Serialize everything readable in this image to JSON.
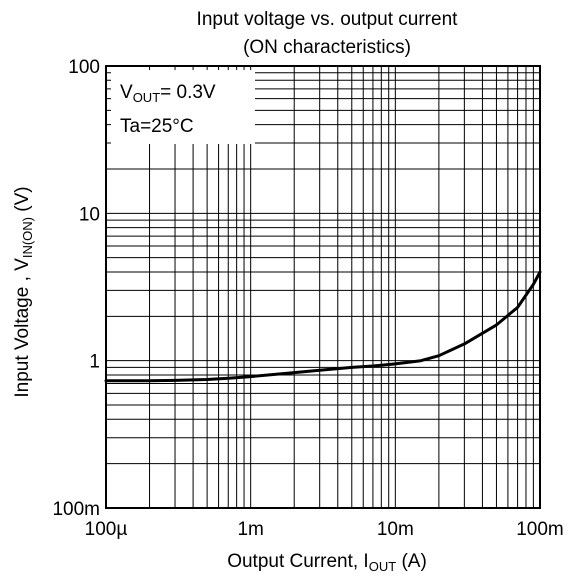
{
  "chart_data": {
    "type": "line",
    "title": "Input voltage vs. output current",
    "subtitle": "(ON characteristics)",
    "xlabel": {
      "main": "Output Current, I",
      "sub": "OUT",
      "unit": " (A)"
    },
    "ylabel": {
      "main": "Input Voltage , V",
      "sub": "IN(ON)",
      "unit": " (V)"
    },
    "x_scale": "log",
    "y_scale": "log",
    "xlim": [
      0.0001,
      0.1
    ],
    "ylim": [
      0.1,
      100
    ],
    "grid": true,
    "x_ticks": [
      {
        "value": 0.0001,
        "label": "100µ"
      },
      {
        "value": 0.001,
        "label": "1m"
      },
      {
        "value": 0.01,
        "label": "10m"
      },
      {
        "value": 0.1,
        "label": "100m"
      }
    ],
    "y_ticks": [
      {
        "value": 0.1,
        "label": "100m"
      },
      {
        "value": 1,
        "label": "1"
      },
      {
        "value": 10,
        "label": "10"
      },
      {
        "value": 100,
        "label": "100"
      }
    ],
    "annotations": [
      {
        "main": "V",
        "sub": "OUT",
        "rest": "= 0.3V"
      },
      {
        "main": "Ta=25°C"
      }
    ],
    "series": [
      {
        "color": "#000000",
        "x": [
          0.0001,
          0.0002,
          0.0003,
          0.0005,
          0.0007,
          0.001,
          0.002,
          0.003,
          0.005,
          0.007,
          0.01,
          0.015,
          0.02,
          0.03,
          0.05,
          0.07,
          0.09,
          0.1
        ],
        "y": [
          0.73,
          0.73,
          0.735,
          0.745,
          0.76,
          0.78,
          0.83,
          0.86,
          0.9,
          0.92,
          0.95,
          1.0,
          1.08,
          1.3,
          1.75,
          2.3,
          3.3,
          4.0
        ]
      }
    ]
  }
}
